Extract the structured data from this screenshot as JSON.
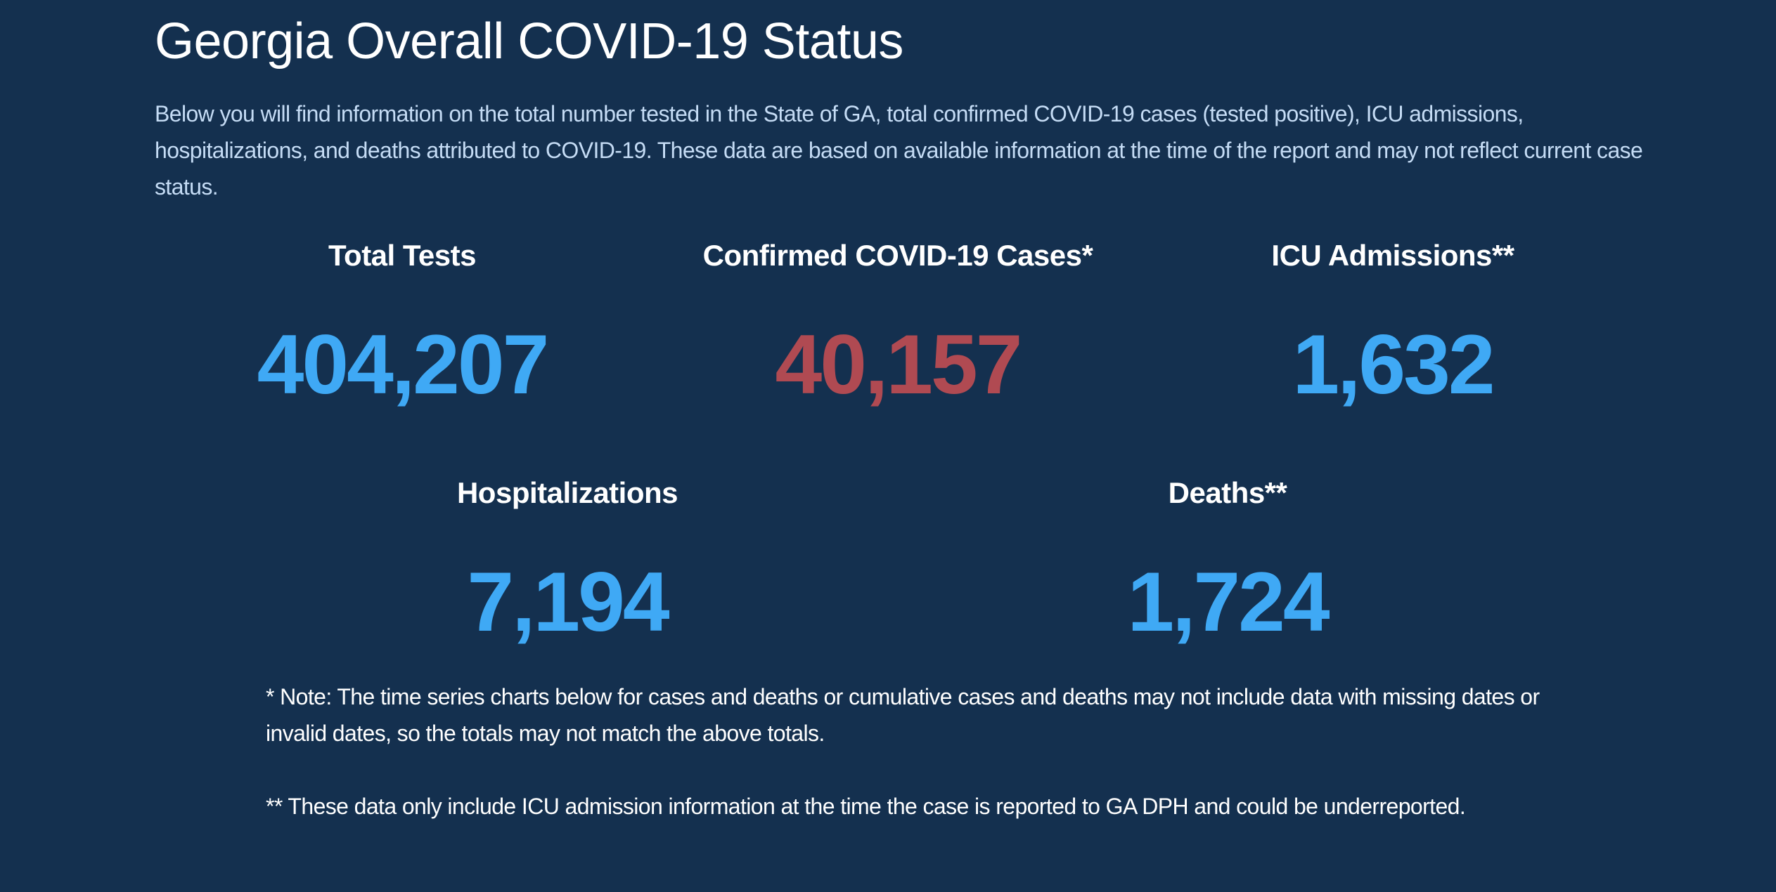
{
  "header": {
    "title": "Georgia Overall COVID-19 Status",
    "intro": "Below you will find information on the total number tested in the State of GA, total confirmed COVID-19 cases (tested positive), ICU admissions, hospitalizations, and deaths attributed to COVID-19. These data are based on available information at the time of the report and may not reflect current case status."
  },
  "stats": [
    {
      "label": "Total Tests",
      "value": "404,207",
      "color": "#3fa9f5"
    },
    {
      "label": "Confirmed COVID-19 Cases*",
      "value": "40,157",
      "color": "#b04a52"
    },
    {
      "label": "ICU Admissions**",
      "value": "1,632",
      "color": "#3fa9f5"
    },
    {
      "label": "Hospitalizations",
      "value": "7,194",
      "color": "#3fa9f5"
    },
    {
      "label": "Deaths**",
      "value": "1,724",
      "color": "#3fa9f5"
    }
  ],
  "notes": [
    "* Note: The time series charts below for cases and deaths or cumulative cases and deaths may not include data with missing dates or invalid dates, so the totals may not match the above totals.",
    "** These data only include ICU admission information at the time the case is reported to GA DPH and could be underreported."
  ]
}
